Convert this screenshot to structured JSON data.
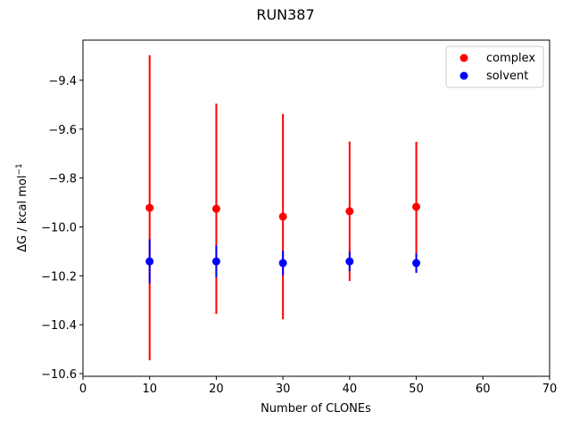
{
  "chart_data": {
    "type": "errorbar",
    "title": "RUN387",
    "xlabel": "Number of CLONEs",
    "ylabel": "ΔG / kcal mol",
    "ylabel_superscript": "−1",
    "x": [
      10,
      20,
      30,
      40,
      50
    ],
    "series": [
      {
        "name": "complex",
        "color": "#ff0000",
        "values": [
          -9.922,
          -9.926,
          -9.958,
          -9.936,
          -9.918
        ],
        "errors": [
          0.624,
          0.43,
          0.42,
          0.285,
          0.266
        ]
      },
      {
        "name": "solvent",
        "color": "#0000ff",
        "values": [
          -10.141,
          -10.141,
          -10.148,
          -10.141,
          -10.148
        ],
        "errors": [
          0.09,
          0.065,
          0.05,
          0.04,
          0.04
        ]
      }
    ],
    "xlim": [
      0,
      70
    ],
    "xticks": [
      0,
      10,
      20,
      30,
      40,
      50,
      60,
      70
    ],
    "ylim": [
      -10.611,
      -9.236
    ],
    "yticks": [
      {
        "value": -10.6,
        "label": "−10.6"
      },
      {
        "value": -10.4,
        "label": "−10.4"
      },
      {
        "value": -10.2,
        "label": "−10.2"
      },
      {
        "value": -10.0,
        "label": "−10.0"
      },
      {
        "value": -9.8,
        "label": "−9.8"
      },
      {
        "value": -9.6,
        "label": "−9.6"
      },
      {
        "value": -9.4,
        "label": "−9.4"
      }
    ],
    "legend": "upper right"
  }
}
